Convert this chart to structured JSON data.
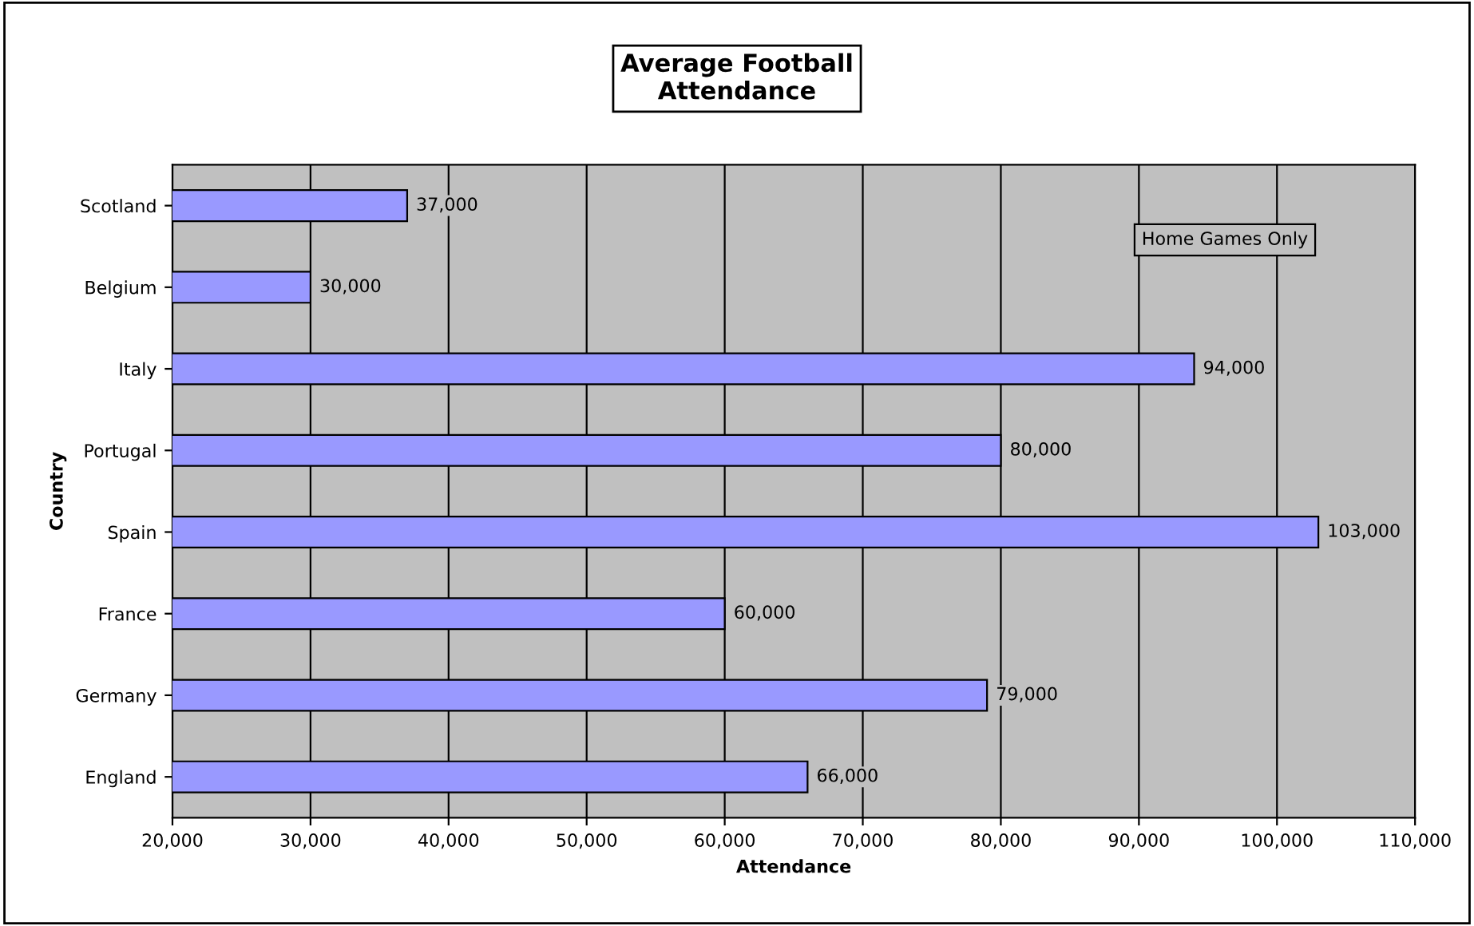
{
  "chart_data": {
    "type": "bar",
    "orientation": "horizontal",
    "title": "Average Football\nAttendance",
    "xlabel": "Attendance",
    "ylabel": "Country",
    "categories": [
      "Scotland",
      "Belgium",
      "Italy",
      "Portugal",
      "Spain",
      "France",
      "Germany",
      "England"
    ],
    "values": [
      37000,
      30000,
      94000,
      80000,
      103000,
      60000,
      79000,
      66000
    ],
    "value_labels": [
      "37,000",
      "30,000",
      "94,000",
      "80,000",
      "103,000",
      "60,000",
      "79,000",
      "66,000"
    ],
    "color": "#9999ff",
    "xlim": [
      20000,
      110000
    ],
    "xticks": [
      {
        "value": 20000,
        "label": "20,000"
      },
      {
        "value": 30000,
        "label": "30,000"
      },
      {
        "value": 40000,
        "label": "40,000"
      },
      {
        "value": 50000,
        "label": "50,000"
      },
      {
        "value": 60000,
        "label": "60,000"
      },
      {
        "value": 70000,
        "label": "70,000"
      },
      {
        "value": 80000,
        "label": "80,000"
      },
      {
        "value": 90000,
        "label": "90,000"
      },
      {
        "value": 100000,
        "label": "100,000"
      },
      {
        "value": 110000,
        "label": "110,000"
      }
    ],
    "grid": "x",
    "annotations": [
      "Home Games Only"
    ]
  }
}
